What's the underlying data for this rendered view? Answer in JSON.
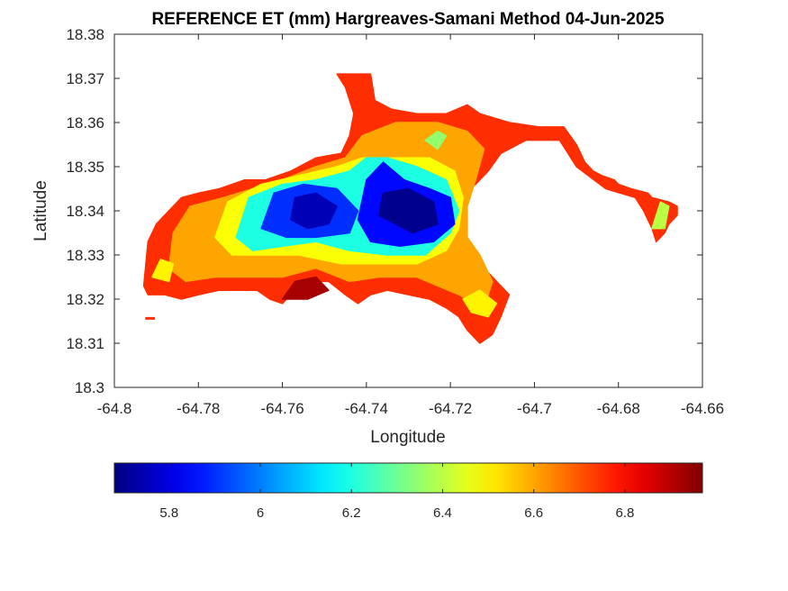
{
  "chart_data": {
    "type": "heatmap",
    "title": "REFERENCE ET (mm) Hargreaves-Samani Method  04-Jun-2025",
    "xlabel": "Longitude",
    "ylabel": "Latitude",
    "xlim": [
      -64.8,
      -64.66
    ],
    "ylim": [
      18.3,
      18.38
    ],
    "xticks": [
      "-64.8",
      "-64.78",
      "-64.76",
      "-64.74",
      "-64.72",
      "-64.7",
      "-64.68",
      "-64.66"
    ],
    "yticks": [
      "18.3",
      "18.31",
      "18.32",
      "18.33",
      "18.34",
      "18.35",
      "18.36",
      "18.37",
      "18.38"
    ],
    "colormap": "jet",
    "colorbar": {
      "location": "bottom",
      "range": [
        5.68,
        6.97
      ],
      "ticks": [
        "5.8",
        "6",
        "6.2",
        "6.4",
        "6.6",
        "6.8"
      ]
    },
    "field_regions": [
      {
        "name": "main-island-outer",
        "level": 6.75,
        "lon_lat": [
          [
            -64.793,
            18.323
          ],
          [
            -64.792,
            18.333
          ],
          [
            -64.79,
            18.337
          ],
          [
            -64.784,
            18.343
          ],
          [
            -64.78,
            18.344
          ],
          [
            -64.775,
            18.345
          ],
          [
            -64.769,
            18.347
          ],
          [
            -64.764,
            18.347
          ],
          [
            -64.758,
            18.349
          ],
          [
            -64.752,
            18.352
          ],
          [
            -64.746,
            18.353
          ],
          [
            -64.744,
            18.357
          ],
          [
            -64.743,
            18.362
          ],
          [
            -64.745,
            18.368
          ],
          [
            -64.747,
            18.371
          ],
          [
            -64.739,
            18.371
          ],
          [
            -64.738,
            18.365
          ],
          [
            -64.734,
            18.363
          ],
          [
            -64.728,
            18.362
          ],
          [
            -64.721,
            18.362
          ],
          [
            -64.716,
            18.364
          ],
          [
            -64.713,
            18.362
          ],
          [
            -64.706,
            18.36
          ],
          [
            -64.699,
            18.359
          ],
          [
            -64.693,
            18.359
          ],
          [
            -64.69,
            18.355
          ],
          [
            -64.688,
            18.351
          ],
          [
            -64.686,
            18.349
          ],
          [
            -64.684,
            18.348
          ],
          [
            -64.681,
            18.347
          ],
          [
            -64.68,
            18.346
          ],
          [
            -64.677,
            18.345
          ],
          [
            -64.673,
            18.344
          ],
          [
            -64.672,
            18.343
          ],
          [
            -64.668,
            18.342
          ],
          [
            -64.666,
            18.341
          ],
          [
            -64.666,
            18.339
          ],
          [
            -64.668,
            18.337
          ],
          [
            -64.669,
            18.335
          ],
          [
            -64.671,
            18.333
          ],
          [
            -64.672,
            18.336
          ],
          [
            -64.674,
            18.34
          ],
          [
            -64.676,
            18.343
          ],
          [
            -64.683,
            18.345
          ],
          [
            -64.69,
            18.35
          ],
          [
            -64.694,
            18.356
          ],
          [
            -64.702,
            18.356
          ],
          [
            -64.708,
            18.353
          ],
          [
            -64.711,
            18.349
          ],
          [
            -64.714,
            18.346
          ],
          [
            -64.717,
            18.344
          ],
          [
            -64.719,
            18.34
          ],
          [
            -64.719,
            18.335
          ],
          [
            -64.716,
            18.331
          ],
          [
            -64.713,
            18.328
          ],
          [
            -64.709,
            18.324
          ],
          [
            -64.706,
            18.321
          ],
          [
            -64.708,
            18.316
          ],
          [
            -64.71,
            18.312
          ],
          [
            -64.713,
            18.31
          ],
          [
            -64.716,
            18.313
          ],
          [
            -64.718,
            18.316
          ],
          [
            -64.721,
            18.318
          ],
          [
            -64.725,
            18.32
          ],
          [
            -64.73,
            18.321
          ],
          [
            -64.735,
            18.322
          ],
          [
            -64.739,
            18.321
          ],
          [
            -64.742,
            18.319
          ],
          [
            -64.745,
            18.321
          ],
          [
            -64.749,
            18.324
          ],
          [
            -64.753,
            18.324
          ],
          [
            -64.757,
            18.322
          ],
          [
            -64.76,
            18.319
          ],
          [
            -64.763,
            18.32
          ],
          [
            -64.766,
            18.322
          ],
          [
            -64.77,
            18.322
          ],
          [
            -64.775,
            18.322
          ],
          [
            -64.78,
            18.321
          ],
          [
            -64.784,
            18.32
          ],
          [
            -64.788,
            18.321
          ],
          [
            -64.792,
            18.321
          ]
        ]
      },
      {
        "name": "orange-ring",
        "level": 6.6,
        "lon_lat": [
          [
            -64.787,
            18.327
          ],
          [
            -64.786,
            18.335
          ],
          [
            -64.782,
            18.341
          ],
          [
            -64.774,
            18.343
          ],
          [
            -64.767,
            18.345
          ],
          [
            -64.76,
            18.347
          ],
          [
            -64.752,
            18.35
          ],
          [
            -64.745,
            18.352
          ],
          [
            -64.741,
            18.357
          ],
          [
            -64.733,
            18.36
          ],
          [
            -64.723,
            18.36
          ],
          [
            -64.716,
            18.358
          ],
          [
            -64.712,
            18.354
          ],
          [
            -64.714,
            18.347
          ],
          [
            -64.716,
            18.341
          ],
          [
            -64.716,
            18.334
          ],
          [
            -64.713,
            18.33
          ],
          [
            -64.71,
            18.324
          ],
          [
            -64.712,
            18.318
          ],
          [
            -64.718,
            18.321
          ],
          [
            -64.728,
            18.325
          ],
          [
            -64.737,
            18.325
          ],
          [
            -64.744,
            18.324
          ],
          [
            -64.752,
            18.327
          ],
          [
            -64.76,
            18.325
          ],
          [
            -64.768,
            18.325
          ],
          [
            -64.776,
            18.325
          ],
          [
            -64.783,
            18.324
          ]
        ]
      },
      {
        "name": "yellow-zone",
        "level": 6.48,
        "lon_lat": [
          [
            -64.776,
            18.334
          ],
          [
            -64.773,
            18.342
          ],
          [
            -64.765,
            18.346
          ],
          [
            -64.756,
            18.348
          ],
          [
            -64.747,
            18.35
          ],
          [
            -64.741,
            18.352
          ],
          [
            -64.732,
            18.352
          ],
          [
            -64.725,
            18.352
          ],
          [
            -64.719,
            18.349
          ],
          [
            -64.717,
            18.343
          ],
          [
            -64.718,
            18.336
          ],
          [
            -64.721,
            18.331
          ],
          [
            -64.728,
            18.328
          ],
          [
            -64.737,
            18.328
          ],
          [
            -64.746,
            18.328
          ],
          [
            -64.756,
            18.33
          ],
          [
            -64.765,
            18.33
          ],
          [
            -64.772,
            18.33
          ]
        ]
      },
      {
        "name": "cyan-zone",
        "level": 6.2,
        "lon_lat": [
          [
            -64.771,
            18.334
          ],
          [
            -64.768,
            18.343
          ],
          [
            -64.76,
            18.346
          ],
          [
            -64.752,
            18.347
          ],
          [
            -64.744,
            18.349
          ],
          [
            -64.74,
            18.352
          ],
          [
            -64.735,
            18.352
          ],
          [
            -64.728,
            18.35
          ],
          [
            -64.721,
            18.347
          ],
          [
            -64.718,
            18.34
          ],
          [
            -64.72,
            18.335
          ],
          [
            -64.726,
            18.33
          ],
          [
            -64.735,
            18.33
          ],
          [
            -64.744,
            18.331
          ],
          [
            -64.752,
            18.333
          ],
          [
            -64.76,
            18.332
          ],
          [
            -64.767,
            18.331
          ]
        ]
      },
      {
        "name": "blue-zone-west",
        "level": 5.9,
        "lon_lat": [
          [
            -64.765,
            18.336
          ],
          [
            -64.762,
            18.344
          ],
          [
            -64.755,
            18.346
          ],
          [
            -64.747,
            18.345
          ],
          [
            -64.742,
            18.34
          ],
          [
            -64.744,
            18.335
          ],
          [
            -64.752,
            18.334
          ],
          [
            -64.759,
            18.334
          ]
        ]
      },
      {
        "name": "blue-zone-east",
        "level": 5.85,
        "lon_lat": [
          [
            -64.742,
            18.338
          ],
          [
            -64.74,
            18.347
          ],
          [
            -64.736,
            18.351
          ],
          [
            -64.731,
            18.347
          ],
          [
            -64.725,
            18.345
          ],
          [
            -64.72,
            18.343
          ],
          [
            -64.719,
            18.337
          ],
          [
            -64.724,
            18.333
          ],
          [
            -64.732,
            18.332
          ],
          [
            -64.739,
            18.333
          ]
        ]
      },
      {
        "name": "dark-blue-core-west",
        "level": 5.75,
        "lon_lat": [
          [
            -64.758,
            18.338
          ],
          [
            -64.757,
            18.343
          ],
          [
            -64.752,
            18.344
          ],
          [
            -64.747,
            18.341
          ],
          [
            -64.749,
            18.337
          ],
          [
            -64.754,
            18.336
          ]
        ]
      },
      {
        "name": "dark-blue-core-east",
        "level": 5.7,
        "lon_lat": [
          [
            -64.737,
            18.339
          ],
          [
            -64.736,
            18.344
          ],
          [
            -64.73,
            18.345
          ],
          [
            -64.724,
            18.342
          ],
          [
            -64.723,
            18.337
          ],
          [
            -64.729,
            18.335
          ]
        ]
      },
      {
        "name": "dark-red-south",
        "level": 6.92,
        "lon_lat": [
          [
            -64.76,
            18.32
          ],
          [
            -64.757,
            18.324
          ],
          [
            -64.752,
            18.325
          ],
          [
            -64.749,
            18.322
          ],
          [
            -64.754,
            18.32
          ]
        ]
      },
      {
        "name": "green-north",
        "level": 6.35,
        "lon_lat": [
          [
            -64.726,
            18.356
          ],
          [
            -64.723,
            18.358
          ],
          [
            -64.721,
            18.357
          ],
          [
            -64.723,
            18.354
          ]
        ]
      },
      {
        "name": "green-east-islet",
        "level": 6.4,
        "lon_lat": [
          [
            -64.672,
            18.336
          ],
          [
            -64.67,
            18.342
          ],
          [
            -64.668,
            18.341
          ],
          [
            -64.669,
            18.336
          ]
        ]
      },
      {
        "name": "yellow-southwest",
        "level": 6.5,
        "lon_lat": [
          [
            -64.791,
            18.325
          ],
          [
            -64.789,
            18.329
          ],
          [
            -64.786,
            18.328
          ],
          [
            -64.787,
            18.324
          ]
        ]
      },
      {
        "name": "yellow-southeast",
        "level": 6.5,
        "lon_lat": [
          [
            -64.717,
            18.32
          ],
          [
            -64.713,
            18.322
          ],
          [
            -64.709,
            18.319
          ],
          [
            -64.711,
            18.316
          ],
          [
            -64.715,
            18.317
          ]
        ]
      },
      {
        "name": "red-speck",
        "level": 6.75,
        "lon_lat": [
          [
            -64.7925,
            18.3155
          ],
          [
            -64.7905,
            18.3155
          ],
          [
            -64.7905,
            18.3158
          ],
          [
            -64.7925,
            18.3158
          ]
        ]
      }
    ]
  }
}
